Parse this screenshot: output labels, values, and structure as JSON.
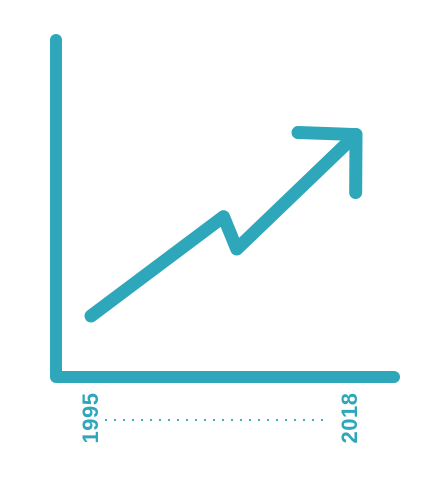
{
  "chart_data": {
    "type": "line",
    "title": "",
    "xlabel": "",
    "ylabel": "",
    "x_tick_labels": [
      "1995",
      "2018"
    ],
    "series": [
      {
        "points": [
          {
            "x": 0.0,
            "y": 0.0
          },
          {
            "x": 0.5,
            "y": 0.46
          },
          {
            "x": 0.55,
            "y": 0.31
          },
          {
            "x": 1.0,
            "y": 0.84
          }
        ]
      }
    ],
    "arrow_head": true,
    "grid": false,
    "legend": "none"
  },
  "colors": {
    "accent": "#2fa7bb",
    "background": "#ffffff"
  }
}
